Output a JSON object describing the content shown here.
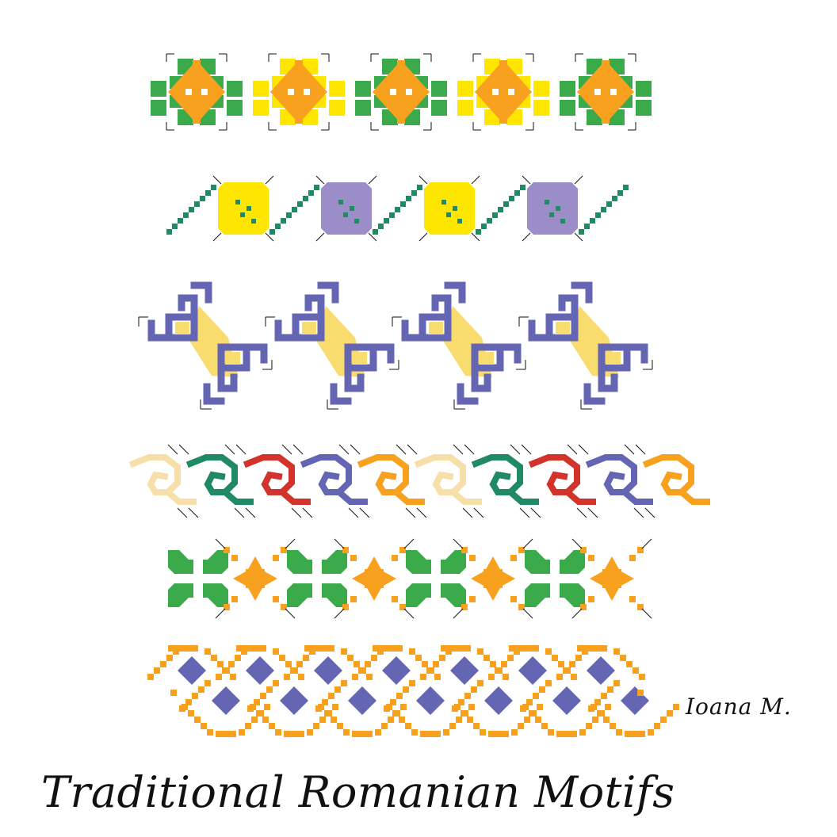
{
  "title": "Traditional Romanian Motifs",
  "author": "Ioana M.",
  "colors": {
    "green": "#3aaa4a",
    "teal": "#1f8a63",
    "yellow": "#ffe600",
    "orange": "#f7a11f",
    "violet": "#6466b4",
    "lavender": "#9a8dc8",
    "pale_yellow": "#f8dc6e",
    "cream": "#f6dfa8",
    "red": "#d2332a"
  },
  "bands": [
    {
      "name": "flower-band",
      "repeats": 5
    },
    {
      "name": "vine-square-band",
      "repeats": 4
    },
    {
      "name": "hook-cross-band",
      "repeats": 4
    },
    {
      "name": "spiral-wave-band",
      "repeats": 10
    },
    {
      "name": "leaf-star-band",
      "repeats": 4
    },
    {
      "name": "diamond-lattice-band",
      "repeats": 7
    }
  ]
}
